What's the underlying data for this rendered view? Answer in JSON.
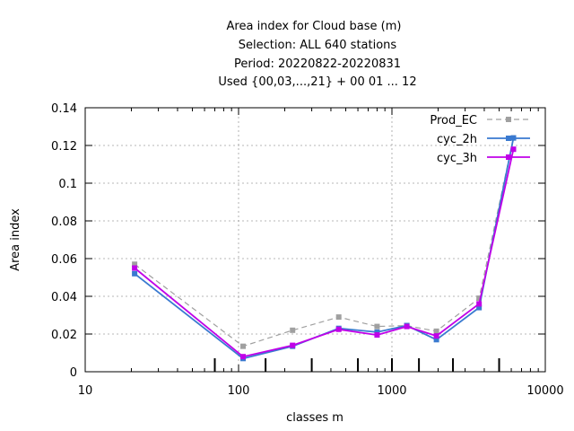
{
  "chart_data": {
    "type": "line",
    "title_lines": [
      "Area index  for Cloud base (m)",
      "Selection: ALL    640 stations",
      "Period: 20220822-20220831",
      "Used {00,03,...,21} + 00 01 ... 12"
    ],
    "xlabel": "classes m",
    "ylabel": "Area index",
    "x_scale": "log",
    "xlim": [
      10,
      10000
    ],
    "ylim": [
      0,
      0.14
    ],
    "x_ticks": [
      10,
      100,
      1000,
      10000
    ],
    "x_tick_labels": [
      "10",
      "100",
      "1000",
      "10000"
    ],
    "y_ticks": [
      0,
      0.02,
      0.04,
      0.06,
      0.08,
      0.1,
      0.12,
      0.14
    ],
    "y_tick_labels": [
      "0",
      "0.02",
      "0.04",
      "0.06",
      "0.08",
      "0.1",
      "0.12",
      "0.14"
    ],
    "grid": true,
    "legend_position": "top-right",
    "class_boundaries": [
      70,
      150,
      300,
      600,
      1000,
      1500,
      2500,
      5000
    ],
    "x": [
      21,
      107,
      225,
      450,
      800,
      1250,
      1950,
      3700,
      6200
    ],
    "series": [
      {
        "name": "Prod_EC",
        "color": "#a0a0a0",
        "dashed": true,
        "values": [
          0.057,
          0.0135,
          0.022,
          0.029,
          0.024,
          0.0245,
          0.0215,
          0.039,
          0.124
        ]
      },
      {
        "name": "cyc_2h",
        "color": "#3a7ad0",
        "dashed": false,
        "values": [
          0.052,
          0.007,
          0.0135,
          0.023,
          0.021,
          0.0245,
          0.017,
          0.034,
          0.124
        ]
      },
      {
        "name": "cyc_3h",
        "color": "#c000e8",
        "dashed": false,
        "values": [
          0.055,
          0.008,
          0.014,
          0.0225,
          0.0195,
          0.024,
          0.019,
          0.036,
          0.118
        ]
      }
    ]
  }
}
